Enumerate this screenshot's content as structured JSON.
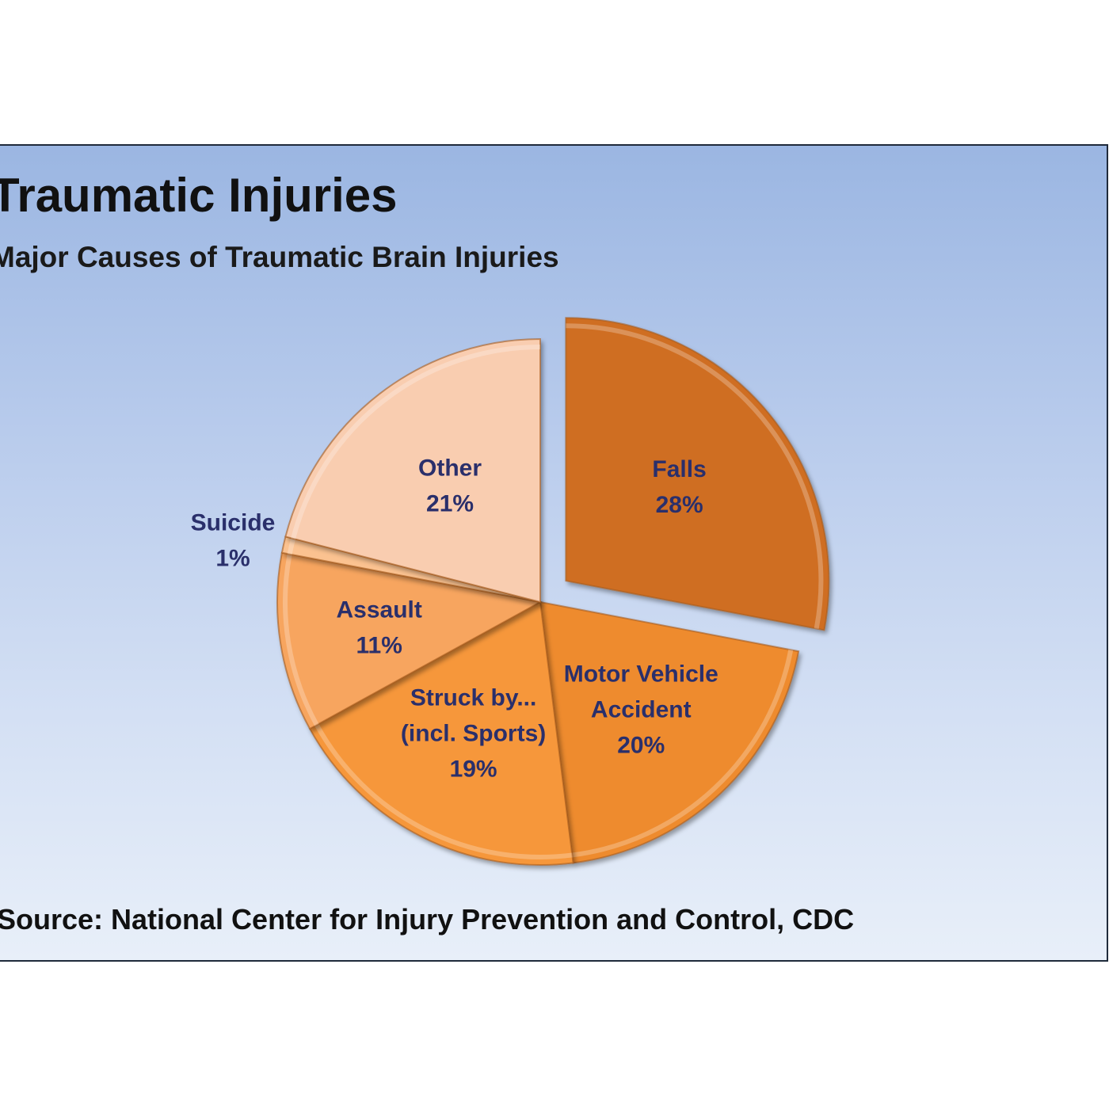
{
  "chart_data": {
    "type": "pie",
    "title": "Traumatic Injuries",
    "subtitle": "Major Causes of Traumatic Brain Injuries",
    "source": "Source:  National Center for Injury Prevention and Control, CDC",
    "start_slice": "Falls",
    "slices": [
      {
        "label": [
          "Falls"
        ],
        "value": 28,
        "value_label": "28%",
        "color": "#cf6e22",
        "exploded": true
      },
      {
        "label": [
          "Motor Vehicle",
          "Accident"
        ],
        "value": 20,
        "value_label": "20%",
        "color": "#ee8b2e",
        "exploded": false
      },
      {
        "label": [
          "Struck by...",
          "(incl. Sports)"
        ],
        "value": 19,
        "value_label": "19%",
        "color": "#f6973a",
        "exploded": false
      },
      {
        "label": [
          "Assault"
        ],
        "value": 11,
        "value_label": "11%",
        "color": "#f7a55e",
        "exploded": false
      },
      {
        "label": [
          "Suicide"
        ],
        "value": 1,
        "value_label": "1%",
        "color": "#fbc290",
        "exploded": false
      },
      {
        "label": [
          "Other"
        ],
        "value": 21,
        "value_label": "21%",
        "color": "#f9cdb0",
        "exploded": false
      }
    ],
    "label_color": "#2a2f6b",
    "legend": "none"
  }
}
